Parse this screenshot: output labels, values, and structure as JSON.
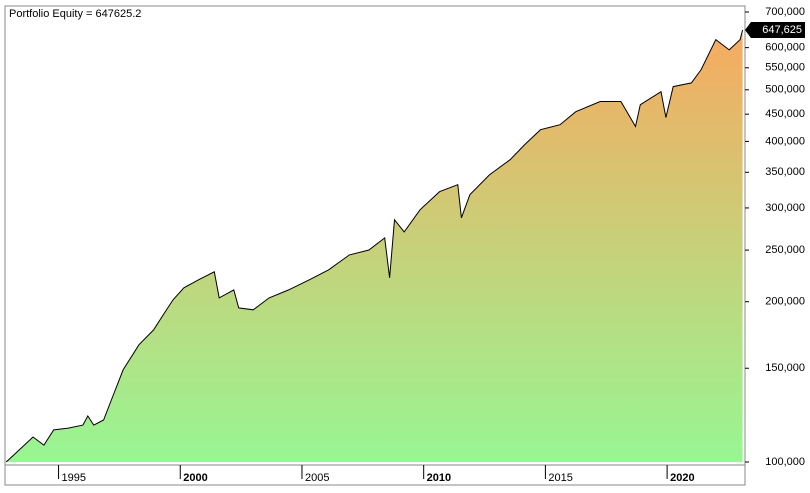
{
  "chart_data": {
    "type": "area",
    "title": "Portfolio Equity = 647625.2",
    "x": [
      1992.85,
      1993.15,
      1993.95,
      1994.4,
      1994.8,
      1995.4,
      1996.0,
      1996.2,
      1996.45,
      1996.85,
      1997.25,
      1997.65,
      1998.3,
      1998.9,
      1999.3,
      1999.7,
      2000.15,
      2000.75,
      2001.4,
      2001.6,
      2002.2,
      2002.4,
      2003.0,
      2003.65,
      2004.45,
      2005.3,
      2006.1,
      2006.95,
      2007.75,
      2008.4,
      2008.6,
      2008.8,
      2009.2,
      2009.85,
      2010.65,
      2011.4,
      2011.55,
      2011.9,
      2012.7,
      2013.55,
      2014.15,
      2014.8,
      2015.6,
      2016.25,
      2017.25,
      2018.1,
      2018.7,
      2018.9,
      2019.75,
      2019.95,
      2020.25,
      2021.0,
      2021.4,
      2022.0,
      2022.55,
      2023.0,
      2023.1
    ],
    "values": [
      100000,
      103000,
      111400,
      107600,
      114900,
      115800,
      117300,
      122000,
      117300,
      119900,
      133600,
      148900,
      166000,
      177000,
      188900,
      201600,
      212400,
      219900,
      227600,
      203300,
      210500,
      194700,
      193100,
      203300,
      210500,
      219900,
      229600,
      244900,
      250100,
      263600,
      221800,
      285000,
      270500,
      297600,
      321800,
      331700,
      287500,
      317700,
      346100,
      369600,
      394500,
      420700,
      429900,
      454900,
      475300,
      475300,
      426600,
      468800,
      495900,
      443600,
      507000,
      515200,
      545800,
      621300,
      594300,
      621300,
      647625.2
    ],
    "last_value_label": "647,625",
    "xlim": [
      1992.8,
      2023.2
    ],
    "xticks": [
      1995,
      2000,
      2005,
      2010,
      2015,
      2020
    ],
    "ylim": [
      100000,
      700000
    ],
    "log_scale": true,
    "yticks": [
      {
        "value": 100000,
        "label": "100,000"
      },
      {
        "value": 150000,
        "label": "150,000"
      },
      {
        "value": 200000,
        "label": "200,000"
      },
      {
        "value": 250000,
        "label": "250,000"
      },
      {
        "value": 300000,
        "label": "300,000"
      },
      {
        "value": 350000,
        "label": "350,000"
      },
      {
        "value": 400000,
        "label": "400,000"
      },
      {
        "value": 450000,
        "label": "450,000"
      },
      {
        "value": 500000,
        "label": "500,000"
      },
      {
        "value": 550000,
        "label": "550,000"
      },
      {
        "value": 600000,
        "label": "600,000"
      },
      {
        "value": 700000,
        "label": "700,000"
      }
    ],
    "line_color": "#000000",
    "fill_colors": [
      "#98f693",
      "#f7aa60"
    ]
  }
}
